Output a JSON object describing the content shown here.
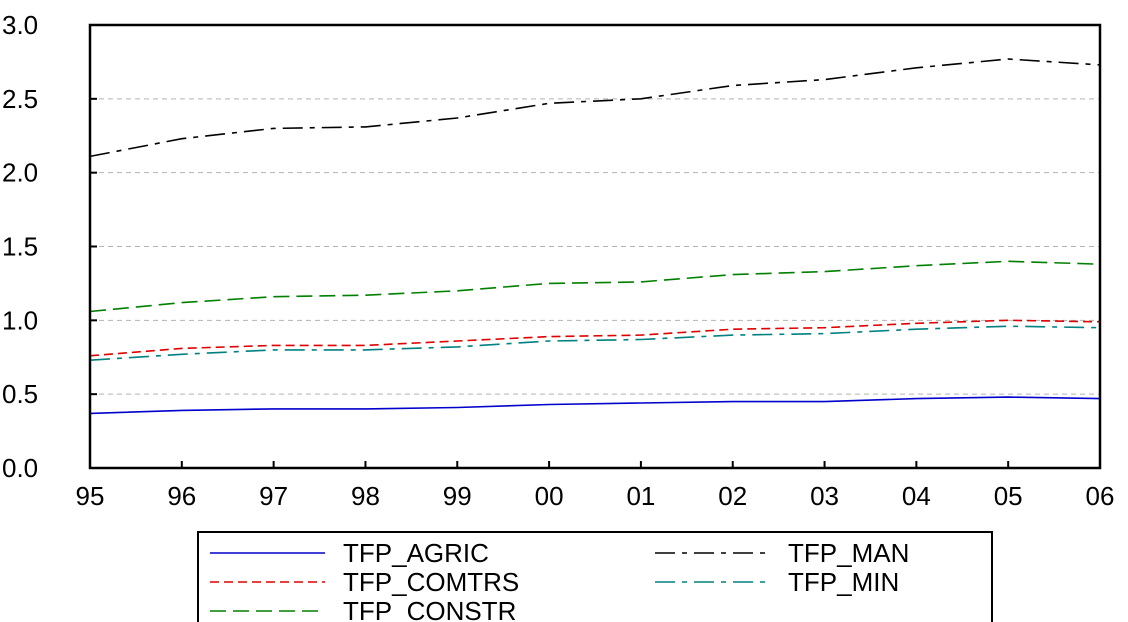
{
  "chart_data": {
    "type": "line",
    "title": "",
    "xlabel": "",
    "ylabel": "",
    "categories": [
      "95",
      "96",
      "97",
      "98",
      "99",
      "00",
      "01",
      "02",
      "03",
      "04",
      "05",
      "06"
    ],
    "ylim": [
      0.0,
      3.0
    ],
    "yticks": [
      "0.0",
      "0.5",
      "1.0",
      "1.5",
      "2.0",
      "2.5",
      "3.0"
    ],
    "grid": "horizontal dashed",
    "legend_position": "bottom",
    "series": [
      {
        "name": "TFP_AGRIC",
        "color": "#0000cc",
        "dash": "solid",
        "values": [
          0.37,
          0.39,
          0.4,
          0.4,
          0.41,
          0.43,
          0.44,
          0.45,
          0.45,
          0.47,
          0.48,
          0.47
        ]
      },
      {
        "name": "TFP_COMTRS",
        "color": "#e00000",
        "dash": "dash",
        "values": [
          0.76,
          0.81,
          0.83,
          0.83,
          0.86,
          0.89,
          0.9,
          0.94,
          0.95,
          0.98,
          1.0,
          0.99
        ]
      },
      {
        "name": "TFP_CONSTR",
        "color": "#008000",
        "dash": "longdash",
        "values": [
          1.06,
          1.12,
          1.16,
          1.17,
          1.2,
          1.25,
          1.26,
          1.31,
          1.33,
          1.37,
          1.4,
          1.38
        ]
      },
      {
        "name": "TFP_MAN",
        "color": "#000000",
        "dash": "dashdot",
        "values": [
          2.11,
          2.23,
          2.3,
          2.31,
          2.37,
          2.47,
          2.5,
          2.59,
          2.63,
          2.71,
          2.77,
          2.73
        ]
      },
      {
        "name": "TFP_MIN",
        "color": "#008080",
        "dash": "dashdot",
        "values": [
          0.73,
          0.77,
          0.8,
          0.8,
          0.82,
          0.86,
          0.87,
          0.9,
          0.91,
          0.94,
          0.96,
          0.95
        ]
      }
    ]
  }
}
